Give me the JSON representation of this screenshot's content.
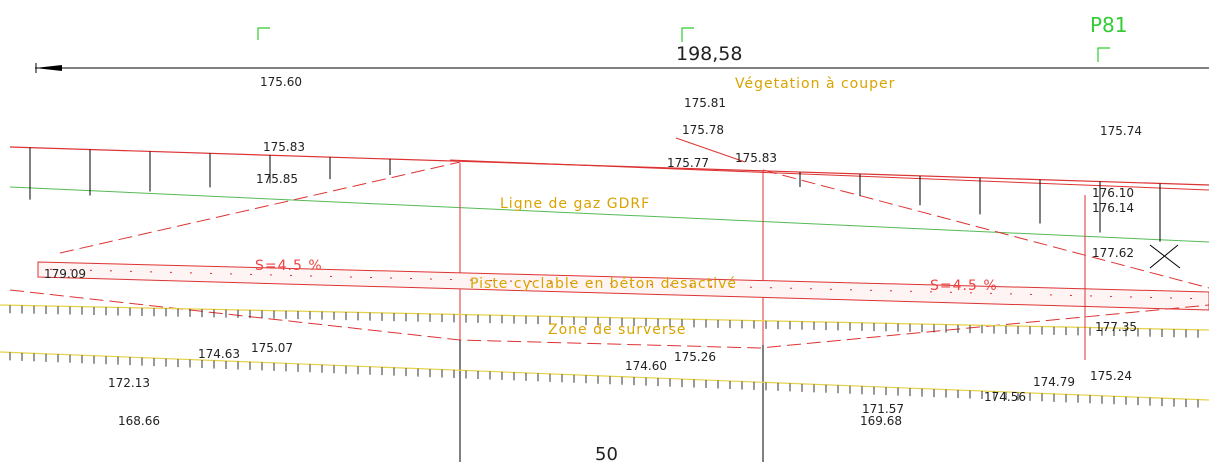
{
  "header": {
    "sheet": "P81",
    "length": "198,58"
  },
  "annotations": {
    "vegetation": "Végetation à couper",
    "gas_line": "Ligne de gaz GDRF",
    "slope_left": "S=4.5 %",
    "cycle_path": "Piste cyclable en béton desactivé",
    "slope_right": "S=4.5 %",
    "overflow_zone": "Zone de surverse",
    "scale": "50"
  },
  "spot_heights": [
    "175.60",
    "175.81",
    "175.78",
    "175.74",
    "175.83",
    "175.77",
    "175.83",
    "175.85",
    "176.10",
    "176.14",
    "177.62",
    "179.09",
    "177.35",
    "174.63",
    "175.07",
    "175.26",
    "174.60",
    "172.13",
    "174.79",
    "175.24",
    "174.56",
    "171.57",
    "169.68",
    "168.66"
  ]
}
